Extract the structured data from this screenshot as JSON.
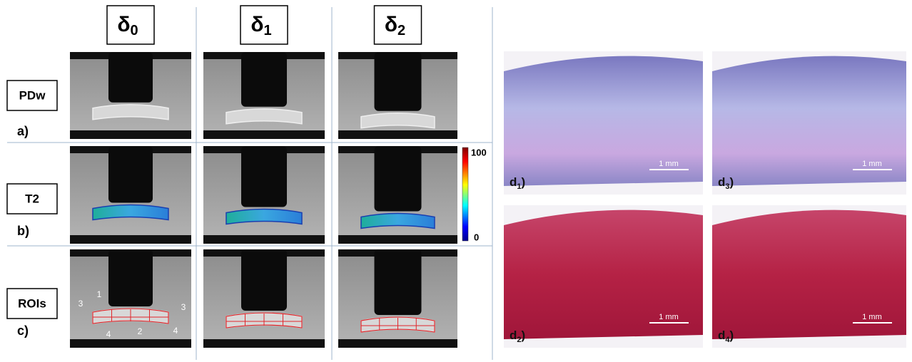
{
  "column_headers": [
    {
      "symbol": "δ",
      "subscript": "0"
    },
    {
      "symbol": "δ",
      "subscript": "1"
    },
    {
      "symbol": "δ",
      "subscript": "2"
    }
  ],
  "rows": [
    {
      "label": "PDw",
      "letter": "a)"
    },
    {
      "label": "T2",
      "letter": "b)"
    },
    {
      "label": "ROIs",
      "letter": "c)"
    }
  ],
  "colorbar": {
    "max": "100",
    "min": "0"
  },
  "roi_labels": [
    "1",
    "2",
    "3",
    "3",
    "4",
    "4"
  ],
  "histology": [
    {
      "symbol": "d",
      "subscript": "1",
      "suffix": ")",
      "scale": "1 mm"
    },
    {
      "symbol": "d",
      "subscript": "3",
      "suffix": ")",
      "scale": "1 mm"
    },
    {
      "symbol": "d",
      "subscript": "2",
      "suffix": ")",
      "scale": "1 mm"
    },
    {
      "symbol": "d",
      "subscript": "4",
      "suffix": ")",
      "scale": "1 mm"
    }
  ]
}
